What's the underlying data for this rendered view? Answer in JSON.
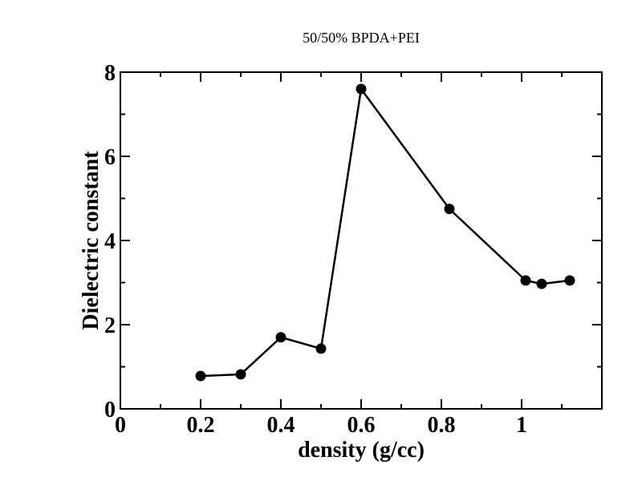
{
  "chart_data": {
    "type": "line",
    "title": "50/50% BPDA+PEI",
    "xlabel": "density (g/cc)",
    "ylabel": "Dielectric constant",
    "xlim": [
      0,
      1.2
    ],
    "ylim": [
      0,
      8
    ],
    "x_ticks": [
      0,
      0.2,
      0.4,
      0.6,
      0.8,
      1
    ],
    "x_tick_labels": [
      "0",
      "0.2",
      "0.4",
      "0.6",
      "0.8",
      "1"
    ],
    "y_ticks": [
      0,
      2,
      4,
      6,
      8
    ],
    "y_tick_labels": [
      "0",
      "2",
      "4",
      "6",
      "8"
    ],
    "grid": false,
    "marker": "circle",
    "line_color": "#000000",
    "series": [
      {
        "x": [
          0.2,
          0.3,
          0.4,
          0.5,
          0.6,
          0.82,
          1.01,
          1.05,
          1.12
        ],
        "y": [
          0.78,
          0.82,
          1.7,
          1.43,
          7.6,
          4.75,
          3.05,
          2.97,
          3.05
        ]
      }
    ]
  }
}
